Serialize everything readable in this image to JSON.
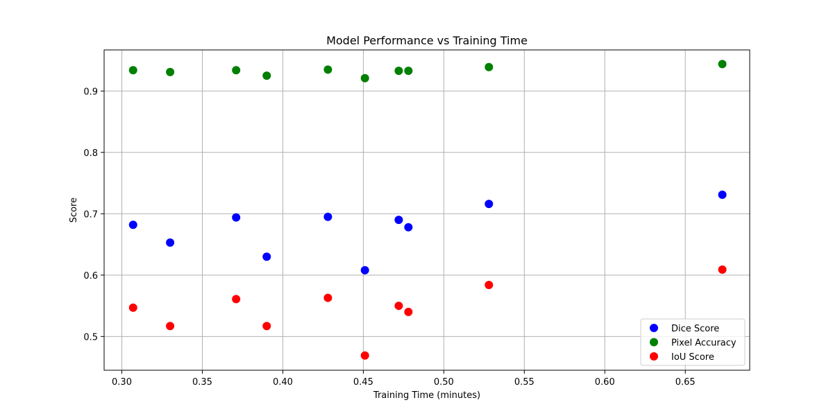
{
  "chart_data": {
    "type": "scatter",
    "title": "Model Performance vs Training Time",
    "xlabel": "Training Time (minutes)",
    "ylabel": "Score",
    "xlim": [
      0.289,
      0.69
    ],
    "ylim": [
      0.445,
      0.967
    ],
    "xticks": [
      0.3,
      0.35,
      0.4,
      0.45,
      0.5,
      0.55,
      0.6,
      0.65
    ],
    "xtick_labels": [
      "0.30",
      "0.35",
      "0.40",
      "0.45",
      "0.50",
      "0.55",
      "0.60",
      "0.65"
    ],
    "yticks": [
      0.5,
      0.6,
      0.7,
      0.8,
      0.9
    ],
    "ytick_labels": [
      "0.5",
      "0.6",
      "0.7",
      "0.8",
      "0.9"
    ],
    "grid": true,
    "legend_position": "lower-right",
    "x": [
      0.307,
      0.33,
      0.371,
      0.39,
      0.428,
      0.451,
      0.472,
      0.478,
      0.528,
      0.673
    ],
    "series": [
      {
        "name": "Dice Score",
        "color": "#0000ff",
        "values": [
          0.682,
          0.653,
          0.694,
          0.63,
          0.695,
          0.608,
          0.69,
          0.678,
          0.716,
          0.731
        ]
      },
      {
        "name": "Pixel Accuracy",
        "color": "#008000",
        "values": [
          0.934,
          0.931,
          0.934,
          0.925,
          0.935,
          0.921,
          0.933,
          0.933,
          0.939,
          0.944
        ]
      },
      {
        "name": "IoU Score",
        "color": "#ff0000",
        "values": [
          0.547,
          0.517,
          0.561,
          0.517,
          0.563,
          0.469,
          0.55,
          0.54,
          0.584,
          0.609
        ]
      }
    ]
  }
}
